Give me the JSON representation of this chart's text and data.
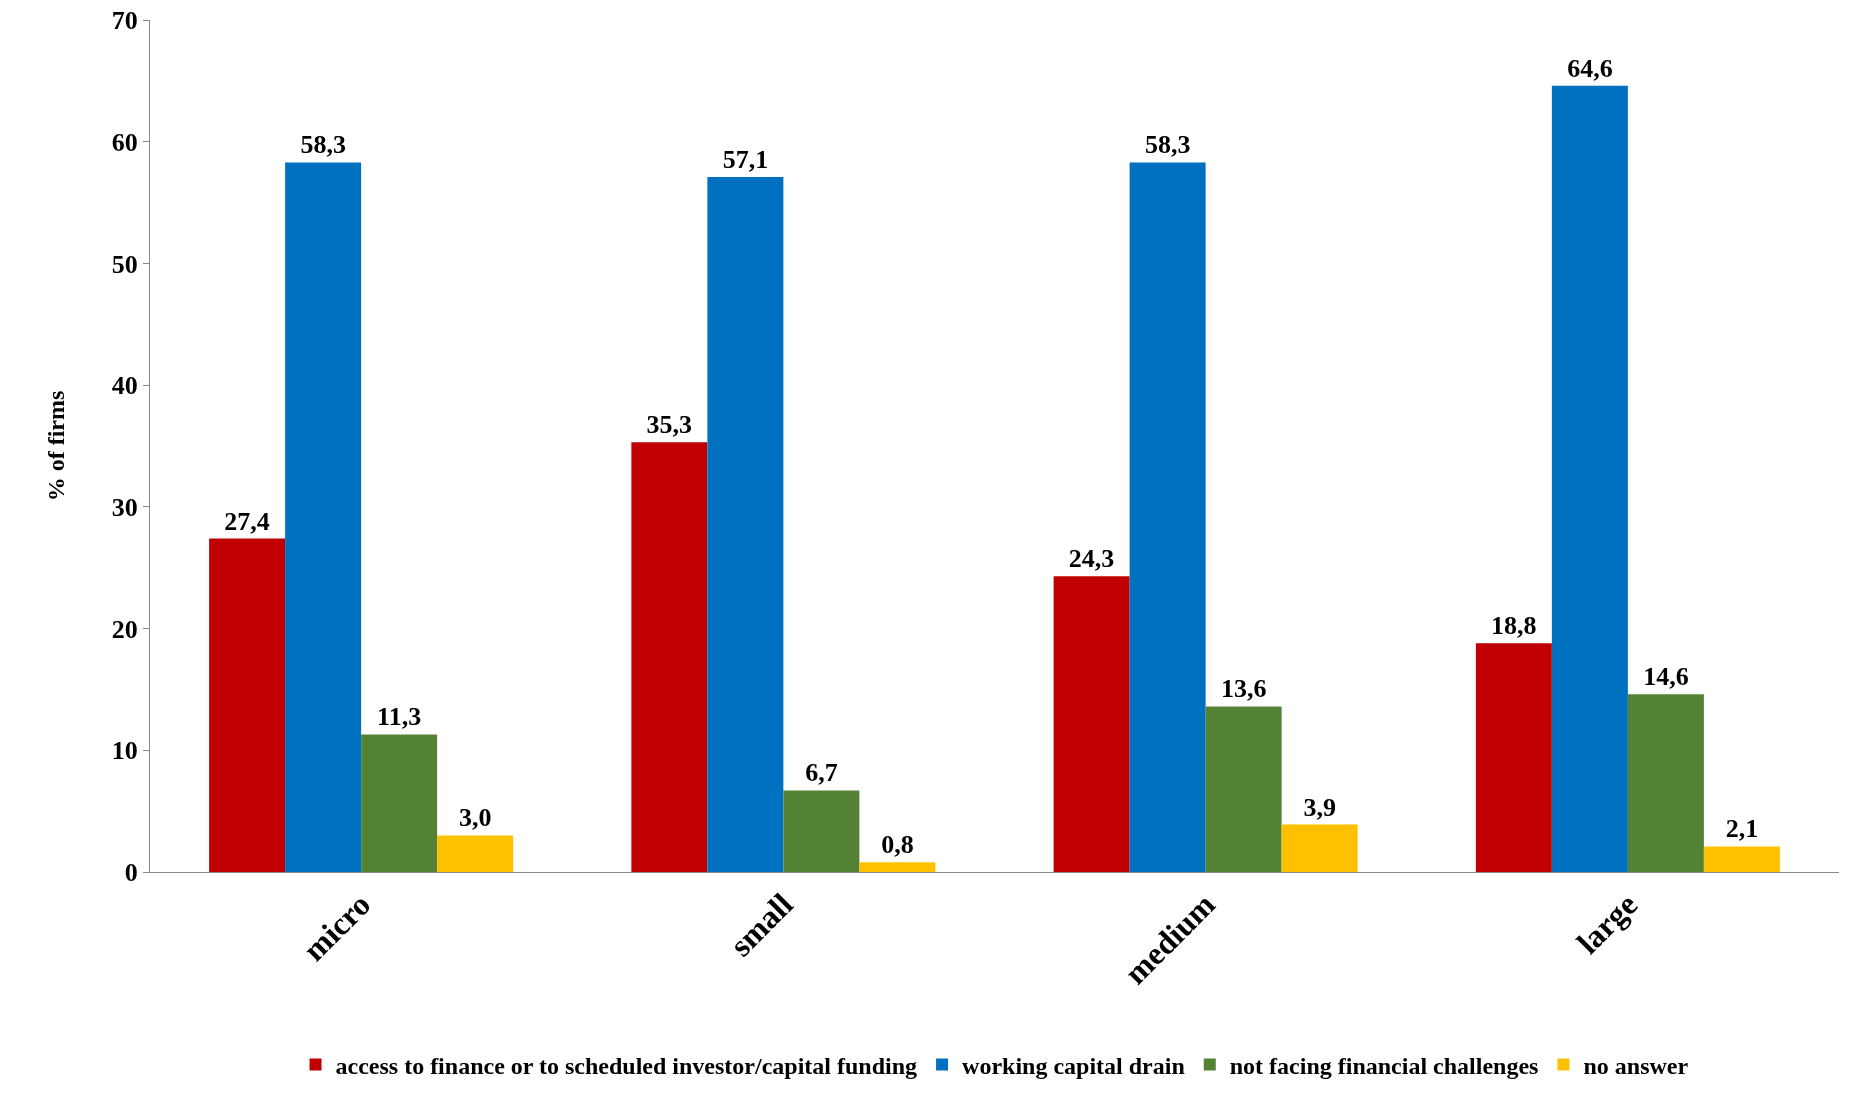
{
  "chart_data": {
    "type": "bar",
    "ylabel": "% of firms",
    "categories": [
      "micro",
      "small",
      "medium",
      "large"
    ],
    "series": [
      {
        "name": "access to finance or to scheduled investor/capital funding",
        "color": "#c00000",
        "values": [
          27.4,
          35.3,
          24.3,
          18.8
        ],
        "value_labels": [
          "27,4",
          "35,3",
          "24,3",
          "18,8"
        ]
      },
      {
        "name": "working capital drain",
        "color": "#0070c0",
        "values": [
          58.3,
          57.1,
          58.3,
          64.6
        ],
        "value_labels": [
          "58,3",
          "57,1",
          "58,3",
          "64,6"
        ]
      },
      {
        "name": "not facing financial challenges",
        "color": "#548235",
        "values": [
          11.3,
          6.7,
          13.6,
          14.6
        ],
        "value_labels": [
          "11,3",
          "6,7",
          "13,6",
          "14,6"
        ]
      },
      {
        "name": "no answer",
        "color": "#ffc000",
        "values": [
          3.0,
          0.8,
          3.9,
          2.1
        ],
        "value_labels": [
          "3,0",
          "0,8",
          "3,9",
          "2,1"
        ]
      }
    ],
    "ylim": [
      0,
      70
    ],
    "yticks": [
      0,
      10,
      20,
      30,
      40,
      50,
      60,
      70
    ],
    "grid": false,
    "legend": "bottom"
  }
}
